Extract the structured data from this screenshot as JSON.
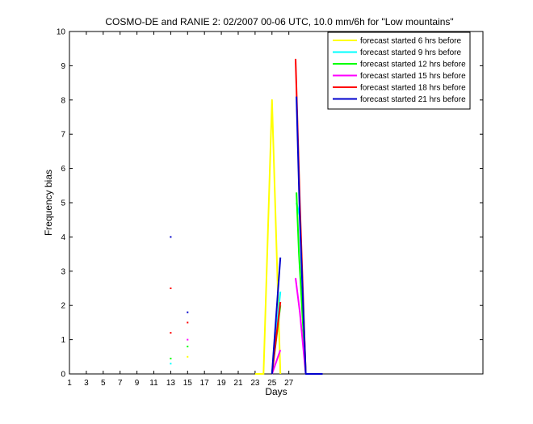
{
  "chart_data": {
    "type": "line",
    "title": "COSMO-DE and RANIE 2: 02/2007 00-06 UTC, 10.0 mm/6h for \"Low mountains\"",
    "xlabel": "Days",
    "ylabel": "Frequency bias",
    "xlim": [
      1,
      50
    ],
    "ylim": [
      0,
      10
    ],
    "xticks": [
      "1",
      "3",
      "5",
      "7",
      "9",
      "11",
      "13",
      "15",
      "17",
      "19",
      "21",
      "23",
      "25",
      "27"
    ],
    "xtick_values": [
      1,
      3,
      5,
      7,
      9,
      11,
      13,
      15,
      17,
      19,
      21,
      23,
      25,
      27
    ],
    "yticks": [
      "0",
      "1",
      "2",
      "3",
      "4",
      "5",
      "6",
      "7",
      "8",
      "9",
      "10"
    ],
    "ytick_values": [
      0,
      1,
      2,
      3,
      4,
      5,
      6,
      7,
      8,
      9,
      10
    ],
    "grid": false,
    "legend_position": "top-right",
    "series": [
      {
        "name": "forecast started 6 hrs before",
        "color": "#ffff00",
        "points": [
          [
            13,
            0
          ],
          [
            15,
            0.5
          ],
          [
            17,
            0
          ],
          [
            19,
            0
          ],
          [
            21,
            0
          ],
          [
            23,
            0
          ],
          [
            24,
            0
          ],
          [
            25,
            8.0
          ],
          [
            26,
            0
          ],
          [
            27,
            0
          ],
          [
            28,
            2.8
          ],
          [
            29,
            0
          ]
        ],
        "segments": [
          [
            [
              23,
              0
            ],
            [
              24,
              0
            ],
            [
              25,
              8.0
            ],
            [
              26,
              0
            ]
          ]
        ],
        "dots": [
          [
            15,
            0.5
          ]
        ]
      },
      {
        "name": "forecast started 9 hrs before",
        "color": "#00ffff",
        "points": [
          [
            13,
            0.3
          ],
          [
            25,
            0
          ],
          [
            26,
            2.4
          ],
          [
            28,
            4.6
          ],
          [
            29,
            0
          ]
        ],
        "segments": [
          [
            [
              25,
              0
            ],
            [
              26,
              2.4
            ]
          ],
          [
            [
              27.9,
              5.0
            ],
            [
              28.3,
              4.6
            ],
            [
              29,
              0
            ]
          ]
        ],
        "dots": [
          [
            13,
            0.3
          ]
        ]
      },
      {
        "name": "forecast started 12 hrs before",
        "color": "#00ff00",
        "points": [
          [
            13,
            0.45
          ],
          [
            15,
            0.8
          ],
          [
            25,
            0
          ],
          [
            26,
            2.0
          ],
          [
            28,
            5.3
          ],
          [
            29,
            0
          ]
        ],
        "segments": [
          [
            [
              25,
              0
            ],
            [
              26,
              2.0
            ]
          ],
          [
            [
              27.9,
              5.3
            ],
            [
              28.2,
              3.5
            ],
            [
              29,
              0
            ]
          ]
        ],
        "dots": [
          [
            13,
            0.45
          ],
          [
            15,
            0.8
          ]
        ]
      },
      {
        "name": "forecast started 15 hrs before",
        "color": "#ff00ff",
        "points": [
          [
            13,
            0
          ],
          [
            15,
            1.0
          ],
          [
            25,
            0
          ],
          [
            26,
            0.7
          ],
          [
            28,
            2.8
          ],
          [
            29,
            0
          ]
        ],
        "segments": [
          [
            [
              25,
              0
            ],
            [
              26,
              0.7
            ]
          ],
          [
            [
              27.8,
              2.8
            ],
            [
              28.3,
              1.8
            ],
            [
              29,
              0
            ]
          ]
        ],
        "dots": [
          [
            15,
            1.0
          ]
        ]
      },
      {
        "name": "forecast started 18 hrs before",
        "color": "#ff0000",
        "points": [
          [
            13,
            1.2
          ],
          [
            13,
            2.5
          ],
          [
            15,
            1.5
          ],
          [
            25,
            0
          ],
          [
            26,
            2.1
          ],
          [
            28,
            9.2
          ],
          [
            29,
            0
          ]
        ],
        "segments": [
          [
            [
              25,
              0
            ],
            [
              26,
              2.1
            ]
          ],
          [
            [
              27.8,
              9.2
            ],
            [
              28.3,
              5.0
            ],
            [
              29,
              0
            ]
          ]
        ],
        "dots": [
          [
            13,
            1.2
          ],
          [
            13,
            2.5
          ],
          [
            15,
            1.5
          ]
        ]
      },
      {
        "name": "forecast started 21 hrs before",
        "color": "#0000cc",
        "points": [
          [
            13,
            4.0
          ],
          [
            15,
            1.8
          ],
          [
            25,
            0
          ],
          [
            26,
            3.4
          ],
          [
            28,
            8.1
          ],
          [
            29,
            0
          ],
          [
            31,
            0
          ]
        ],
        "segments": [
          [
            [
              25,
              0
            ],
            [
              26,
              3.4
            ]
          ],
          [
            [
              27.9,
              8.1
            ],
            [
              28.3,
              4.5
            ],
            [
              29,
              0
            ],
            [
              31,
              0
            ]
          ]
        ],
        "dots": [
          [
            13,
            4.0
          ],
          [
            15,
            1.8
          ]
        ]
      }
    ]
  }
}
